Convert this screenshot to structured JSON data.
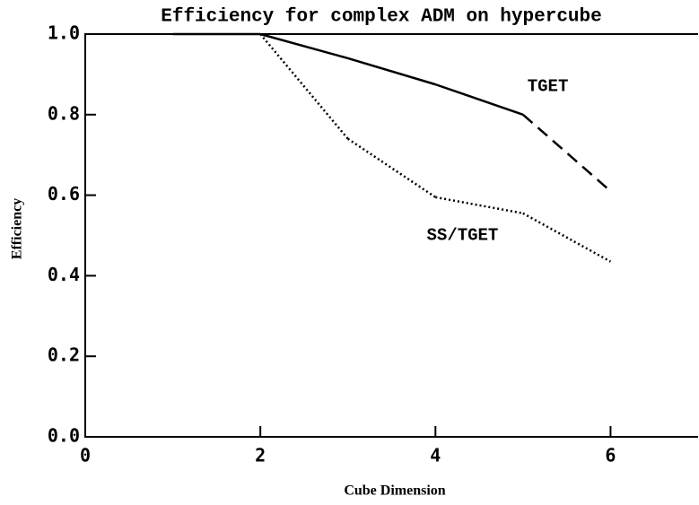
{
  "chart_data": {
    "type": "line",
    "title": "Efficiency for complex ADM on hypercube",
    "x_label": "Cube Dimension",
    "y_label": "Efficiency",
    "xlim": [
      0,
      7
    ],
    "ylim": [
      0,
      1
    ],
    "xticks": [
      0,
      2,
      4,
      6
    ],
    "yticks": [
      {
        "value": 0,
        "label": "0.0"
      },
      0.2,
      0.4,
      0.6,
      0.8,
      {
        "value": 1,
        "label": "1.0"
      }
    ],
    "series": [
      {
        "name": "TGET",
        "color": "#000",
        "x": [
          1,
          2,
          3,
          4,
          5,
          6
        ],
        "values": [
          1.0,
          1.0,
          0.94,
          0.875,
          0.8,
          0.61
        ],
        "segment_styles": [
          "solid",
          "solid",
          "solid",
          "solid",
          "dashed"
        ]
      },
      {
        "name": "SS/TGET",
        "color": "#000",
        "x": [
          2,
          3,
          4,
          5,
          6
        ],
        "values": [
          1.0,
          0.74,
          0.595,
          0.555,
          0.435
        ],
        "segment_styles": [
          "dotted",
          "dotted",
          "dotted",
          "dotted"
        ]
      }
    ]
  }
}
